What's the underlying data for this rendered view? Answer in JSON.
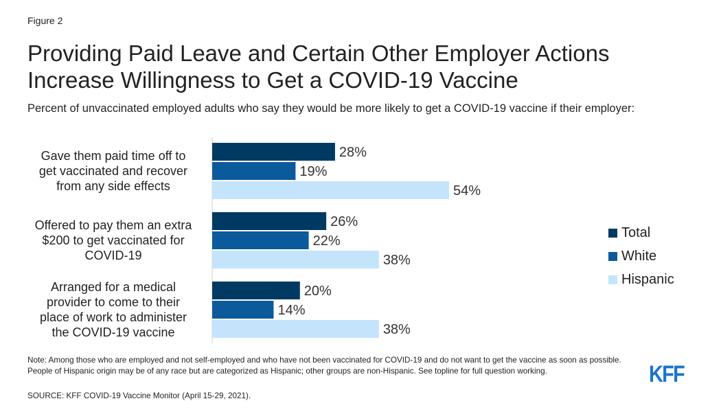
{
  "figure_label": "Figure 2",
  "chart_data": {
    "type": "bar",
    "orientation": "horizontal",
    "title": "Providing Paid Leave and Certain Other Employer Actions Increase Willingness to Get a COVID-19 Vaccine",
    "subtitle": "Percent of unvaccinated employed adults who say they would be more likely to get a COVID-19 vaccine if their employer:",
    "categories": [
      [
        "Gave them paid time off to",
        "get vaccinated and recover",
        "from any side effects"
      ],
      [
        "Offered to pay them an extra",
        "$200 to get vaccinated for",
        "COVID-19"
      ],
      [
        "Arranged for a medical",
        "provider to come to their",
        "place of work to administer",
        "the COVID-19 vaccine"
      ]
    ],
    "series": [
      {
        "name": "Total",
        "color": "#003a63",
        "values": [
          28,
          26,
          20
        ]
      },
      {
        "name": "White",
        "color": "#0b5a9c",
        "values": [
          19,
          22,
          14
        ]
      },
      {
        "name": "Hispanic",
        "color": "#c4e4fb",
        "values": [
          54,
          38,
          38
        ]
      }
    ],
    "value_suffix": "%",
    "xlim": [
      0,
      100
    ],
    "grid": false,
    "legend_position": "right"
  },
  "note": "Note: Among those who are employed and not self-employed and who have not been vaccinated for COVID-19 and do not want to get the vaccine as soon as possible. People of Hispanic origin may be of any race but are categorized as Hispanic; other groups are non-Hispanic. See topline for full question working.",
  "source": "SOURCE: KFF COVID-19 Vaccine Monitor (April 15-29, 2021).",
  "logo": "KFF"
}
